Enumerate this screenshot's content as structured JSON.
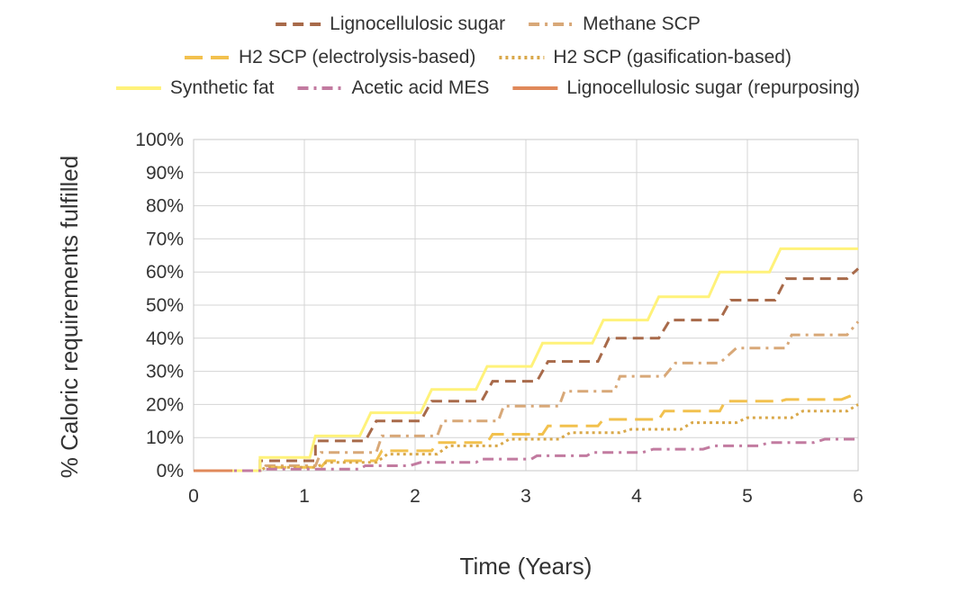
{
  "chart_data": {
    "type": "line",
    "title": "",
    "xlabel": "Time (Years)",
    "ylabel": "% Caloric requirements fulfilled",
    "xlim": [
      0,
      6
    ],
    "ylim": [
      0,
      100
    ],
    "xticks": [
      "0",
      "1",
      "2",
      "3",
      "4",
      "5",
      "6"
    ],
    "yticks": [
      "0%",
      "10%",
      "20%",
      "30%",
      "40%",
      "50%",
      "60%",
      "70%",
      "80%",
      "90%",
      "100%"
    ],
    "grid": true,
    "legend_position": "top",
    "series": [
      {
        "name": "Lignocellulosic sugar",
        "color": "#A86A4A",
        "dash": "dash",
        "points": [
          [
            0,
            0
          ],
          [
            0.6,
            0
          ],
          [
            0.6,
            3
          ],
          [
            1.1,
            3
          ],
          [
            1.1,
            9
          ],
          [
            1.55,
            9
          ],
          [
            1.65,
            15
          ],
          [
            2.05,
            15
          ],
          [
            2.15,
            21
          ],
          [
            2.6,
            21
          ],
          [
            2.7,
            27
          ],
          [
            3.1,
            27
          ],
          [
            3.2,
            33
          ],
          [
            3.65,
            33
          ],
          [
            3.75,
            40
          ],
          [
            4.2,
            40
          ],
          [
            4.3,
            45.5
          ],
          [
            4.75,
            45.5
          ],
          [
            4.85,
            51.5
          ],
          [
            5.25,
            51.5
          ],
          [
            5.35,
            58
          ],
          [
            5.9,
            58
          ],
          [
            6,
            61
          ]
        ]
      },
      {
        "name": "Methane SCP",
        "color": "#D8A878",
        "dash": "dashdot",
        "points": [
          [
            0,
            0
          ],
          [
            0.6,
            0
          ],
          [
            0.65,
            1.5
          ],
          [
            1.1,
            1.5
          ],
          [
            1.15,
            5.5
          ],
          [
            1.65,
            5.5
          ],
          [
            1.7,
            10.5
          ],
          [
            2.2,
            10.5
          ],
          [
            2.25,
            15
          ],
          [
            2.75,
            15
          ],
          [
            2.8,
            19.5
          ],
          [
            3.3,
            19.5
          ],
          [
            3.35,
            24
          ],
          [
            3.8,
            24
          ],
          [
            3.85,
            28.5
          ],
          [
            4.25,
            28.5
          ],
          [
            4.35,
            32.5
          ],
          [
            4.75,
            32.5
          ],
          [
            4.9,
            37
          ],
          [
            5.35,
            37
          ],
          [
            5.4,
            41
          ],
          [
            5.9,
            41
          ],
          [
            6,
            45
          ]
        ]
      },
      {
        "name": "H2 SCP (electrolysis-based)",
        "color": "#F2C14E",
        "dash": "longdash",
        "points": [
          [
            0,
            0
          ],
          [
            0.6,
            0
          ],
          [
            0.6,
            1
          ],
          [
            1.15,
            1
          ],
          [
            1.2,
            3
          ],
          [
            1.65,
            3
          ],
          [
            1.7,
            6
          ],
          [
            2.15,
            6
          ],
          [
            2.2,
            8.5
          ],
          [
            2.65,
            8.5
          ],
          [
            2.7,
            11
          ],
          [
            3.15,
            11
          ],
          [
            3.2,
            13.5
          ],
          [
            3.65,
            13.5
          ],
          [
            3.7,
            15.5
          ],
          [
            4.2,
            15.5
          ],
          [
            4.25,
            18
          ],
          [
            4.75,
            18
          ],
          [
            4.8,
            21
          ],
          [
            5.3,
            21
          ],
          [
            5.35,
            21.5
          ],
          [
            5.85,
            21.5
          ],
          [
            6,
            23.5
          ]
        ]
      },
      {
        "name": "H2 SCP (gasification-based)",
        "color": "#D9A84A",
        "dash": "dot",
        "points": [
          [
            0,
            0
          ],
          [
            0.6,
            0
          ],
          [
            0.65,
            1
          ],
          [
            1.1,
            1
          ],
          [
            1.2,
            2.5
          ],
          [
            1.65,
            2.5
          ],
          [
            1.75,
            5
          ],
          [
            2.2,
            5
          ],
          [
            2.3,
            7.5
          ],
          [
            2.75,
            7.5
          ],
          [
            2.85,
            9.5
          ],
          [
            3.3,
            9.5
          ],
          [
            3.4,
            11.5
          ],
          [
            3.85,
            11.5
          ],
          [
            3.95,
            12.5
          ],
          [
            4.4,
            12.5
          ],
          [
            4.5,
            14.5
          ],
          [
            4.9,
            14.5
          ],
          [
            5,
            16
          ],
          [
            5.4,
            16
          ],
          [
            5.5,
            18
          ],
          [
            5.9,
            18
          ],
          [
            6,
            20
          ]
        ]
      },
      {
        "name": "Synthetic fat",
        "color": "#FFF27A",
        "dash": "solid",
        "points": [
          [
            0,
            0
          ],
          [
            0.6,
            0
          ],
          [
            0.6,
            4
          ],
          [
            1.05,
            4
          ],
          [
            1.1,
            10.5
          ],
          [
            1.5,
            10.5
          ],
          [
            1.6,
            17.5
          ],
          [
            2.05,
            17.5
          ],
          [
            2.15,
            24.5
          ],
          [
            2.55,
            24.5
          ],
          [
            2.65,
            31.5
          ],
          [
            3.05,
            31.5
          ],
          [
            3.15,
            38.5
          ],
          [
            3.6,
            38.5
          ],
          [
            3.7,
            45.5
          ],
          [
            4.1,
            45.5
          ],
          [
            4.2,
            52.5
          ],
          [
            4.65,
            52.5
          ],
          [
            4.75,
            60
          ],
          [
            5.2,
            60
          ],
          [
            5.3,
            67
          ],
          [
            6,
            67
          ]
        ]
      },
      {
        "name": "Acetic acid MES",
        "color": "#C27BA0",
        "dash": "dashdot",
        "points": [
          [
            0,
            0
          ],
          [
            0.6,
            0
          ],
          [
            0.65,
            0.5
          ],
          [
            1.5,
            0.5
          ],
          [
            1.55,
            1.5
          ],
          [
            1.95,
            1.5
          ],
          [
            2.05,
            2.5
          ],
          [
            2.55,
            2.5
          ],
          [
            2.6,
            3.5
          ],
          [
            3.05,
            3.5
          ],
          [
            3.1,
            4.5
          ],
          [
            3.55,
            4.5
          ],
          [
            3.6,
            5.5
          ],
          [
            4.05,
            5.5
          ],
          [
            4.15,
            6.5
          ],
          [
            4.6,
            6.5
          ],
          [
            4.7,
            7.5
          ],
          [
            5.1,
            7.5
          ],
          [
            5.2,
            8.5
          ],
          [
            5.6,
            8.5
          ],
          [
            5.7,
            9.5
          ],
          [
            6,
            9.5
          ]
        ]
      },
      {
        "name": "Lignocellulosic sugar (repurposing)",
        "color": "#E0895A",
        "dash": "solid",
        "points": [
          [
            0,
            0
          ],
          [
            0.35,
            0
          ]
        ]
      }
    ]
  }
}
